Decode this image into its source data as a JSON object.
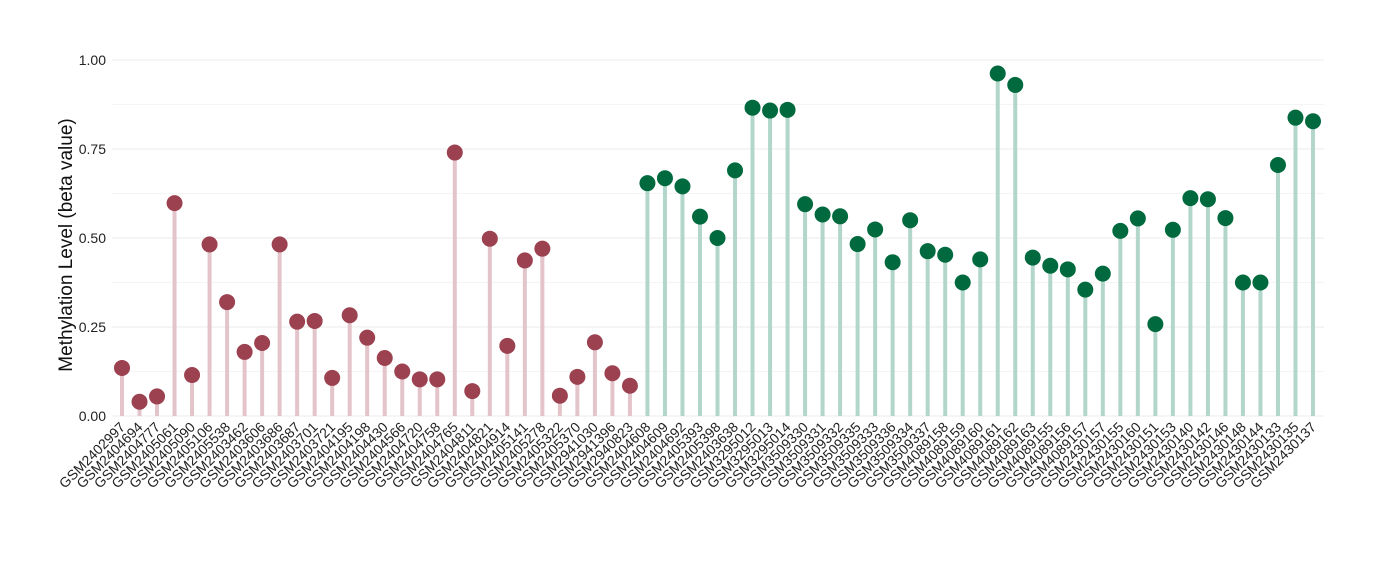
{
  "chart_data": {
    "type": "lollipop",
    "title": "",
    "xlabel": "",
    "ylabel": "Methylation Level (beta value)",
    "ylim": [
      0,
      1
    ],
    "yticks": [
      "0.00",
      "0.25",
      "0.50",
      "0.75",
      "1.00"
    ],
    "ytick_values": [
      0,
      0.25,
      0.5,
      0.75,
      1.0
    ],
    "grid": true,
    "colors": {
      "group1_point": "#9b4150",
      "group1_stem": "#e2c4ca",
      "group2_point": "#006a3e",
      "group2_stem": "#b3d6cb"
    },
    "categories": [
      "GSM2402997",
      "GSM2404694",
      "GSM2404777",
      "GSM2405061",
      "GSM2405090",
      "GSM2405106",
      "GSM2405538",
      "GSM2403462",
      "GSM2403606",
      "GSM2403686",
      "GSM2403687",
      "GSM2403701",
      "GSM2403721",
      "GSM2404195",
      "GSM2404198",
      "GSM2404430",
      "GSM2404566",
      "GSM2404720",
      "GSM2404758",
      "GSM2404765",
      "GSM2404811",
      "GSM2404821",
      "GSM2404914",
      "GSM2405141",
      "GSM2405278",
      "GSM2405322",
      "GSM2405370",
      "GSM2941030",
      "GSM2941396",
      "GSM2940823",
      "GSM2404608",
      "GSM2404609",
      "GSM2404692",
      "GSM2405393",
      "GSM2405398",
      "GSM2403638",
      "GSM3295012",
      "GSM3295013",
      "GSM3295014",
      "GSM3509330",
      "GSM3509331",
      "GSM3509332",
      "GSM3509335",
      "GSM3509333",
      "GSM3509336",
      "GSM3509334",
      "GSM3509337",
      "GSM4089158",
      "GSM4089159",
      "GSM4089160",
      "GSM4089161",
      "GSM4089162",
      "GSM4089163",
      "GSM4089155",
      "GSM4089156",
      "GSM4089157",
      "GSM2430157",
      "GSM2430155",
      "GSM2430160",
      "GSM2430151",
      "GSM2430153",
      "GSM2430140",
      "GSM2430142",
      "GSM2430146",
      "GSM2430148",
      "GSM2430144",
      "GSM2430133",
      "GSM2430135",
      "GSM2430137"
    ],
    "groups": [
      1,
      1,
      1,
      1,
      1,
      1,
      1,
      1,
      1,
      1,
      1,
      1,
      1,
      1,
      1,
      1,
      1,
      1,
      1,
      1,
      1,
      1,
      1,
      1,
      1,
      1,
      1,
      1,
      1,
      1,
      2,
      2,
      2,
      2,
      2,
      2,
      2,
      2,
      2,
      2,
      2,
      2,
      2,
      2,
      2,
      2,
      2,
      2,
      2,
      2,
      2,
      2,
      2,
      2,
      2,
      2,
      2,
      2,
      2,
      2,
      2,
      2,
      2,
      2,
      2,
      2,
      2,
      2,
      2
    ],
    "values": [
      0.135,
      0.04,
      0.055,
      0.598,
      0.115,
      0.482,
      0.32,
      0.18,
      0.205,
      0.482,
      0.265,
      0.267,
      0.107,
      0.283,
      0.22,
      0.163,
      0.125,
      0.103,
      0.103,
      0.74,
      0.07,
      0.498,
      0.197,
      0.437,
      0.47,
      0.057,
      0.11,
      0.207,
      0.12,
      0.085,
      0.654,
      0.668,
      0.645,
      0.56,
      0.5,
      0.69,
      0.866,
      0.858,
      0.86,
      0.595,
      0.566,
      0.561,
      0.483,
      0.524,
      0.432,
      0.55,
      0.463,
      0.453,
      0.375,
      0.44,
      0.962,
      0.93,
      0.445,
      0.422,
      0.412,
      0.355,
      0.4,
      0.52,
      0.555,
      0.258,
      0.523,
      0.612,
      0.609,
      0.556,
      0.375,
      0.375,
      0.705,
      0.838,
      0.828
    ]
  }
}
